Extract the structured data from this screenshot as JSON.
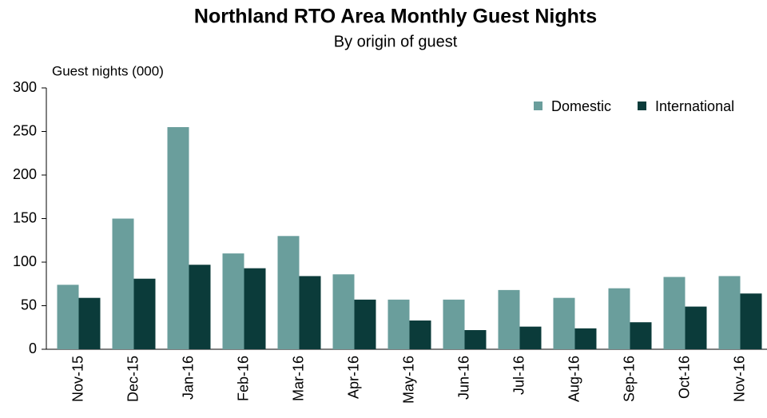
{
  "chart_data": {
    "type": "bar",
    "title": "Northland RTO Area Monthly Guest Nights",
    "subtitle": "By origin  of guest",
    "y_axis_label": "Guest nights (000)",
    "categories": [
      "Nov-15",
      "Dec-15",
      "Jan-16",
      "Feb-16",
      "Mar-16",
      "Apr-16",
      "May-16",
      "Jun-16",
      "Jul-16",
      "Aug-16",
      "Sep-16",
      "Oct-16",
      "Nov-16"
    ],
    "series": [
      {
        "name": "Domestic",
        "color": "#6a9e9c",
        "values": [
          74,
          150,
          255,
          110,
          130,
          86,
          57,
          57,
          68,
          59,
          70,
          83,
          84
        ]
      },
      {
        "name": "International",
        "color": "#0b3b3a",
        "values": [
          59,
          81,
          97,
          93,
          84,
          57,
          33,
          22,
          26,
          24,
          31,
          49,
          64
        ]
      }
    ],
    "ylim": [
      0,
      300
    ],
    "yticks": [
      0,
      50,
      100,
      150,
      200,
      250,
      300
    ],
    "legend": "top-right"
  }
}
